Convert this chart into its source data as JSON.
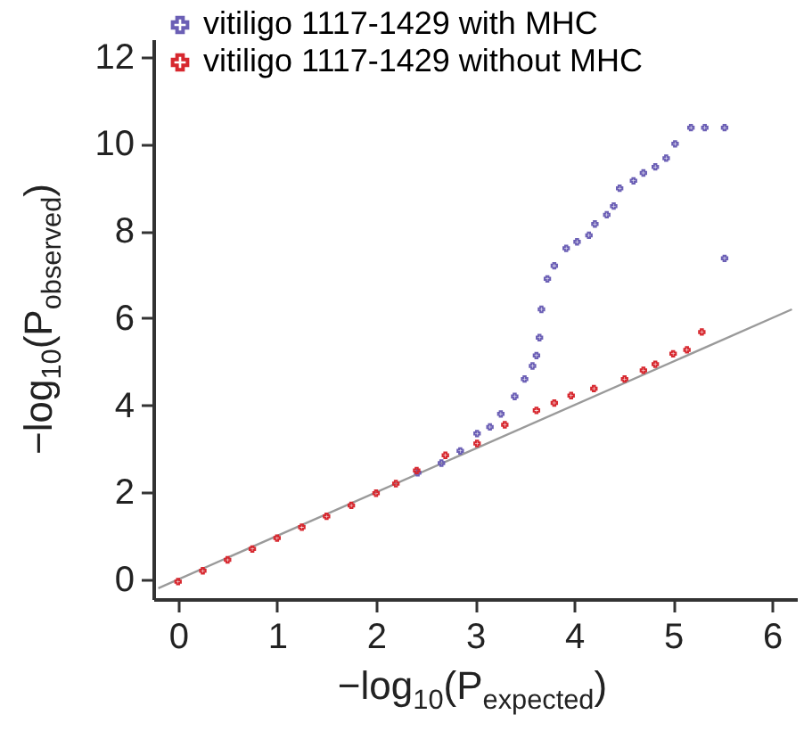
{
  "chart_data": {
    "type": "scatter",
    "xlabel": "−log$_{10}$(P$_{expected}$)",
    "ylabel": "−log$_{10}$(P$_{observed}$)",
    "xlim": [
      -0.25,
      6.25
    ],
    "ylim": [
      -0.45,
      12.4
    ],
    "xticks": [
      0,
      1,
      2,
      3,
      4,
      5,
      6
    ],
    "yticks": [
      0,
      2,
      4,
      6,
      8,
      10,
      12
    ],
    "grid": false,
    "legend": "top left",
    "marker": "cross",
    "series": [
      {
        "name": "vitiligo 1117-1429 with MHC",
        "color": "#6b5fb5",
        "x": [
          2.42,
          2.66,
          2.85,
          3.02,
          3.15,
          3.26,
          3.4,
          3.5,
          3.58,
          3.62,
          3.65,
          3.67,
          3.73,
          3.8,
          3.92,
          4.03,
          4.15,
          4.21,
          4.33,
          4.4,
          4.46,
          4.6,
          4.7,
          4.82,
          4.93,
          5.02,
          5.18,
          5.32,
          5.52,
          5.52
        ],
        "values": [
          2.45,
          2.67,
          2.95,
          3.35,
          3.5,
          3.8,
          4.2,
          4.6,
          4.9,
          5.14,
          5.55,
          6.2,
          6.9,
          7.2,
          7.6,
          7.75,
          7.9,
          8.16,
          8.37,
          8.57,
          8.98,
          9.15,
          9.33,
          9.47,
          9.67,
          10.0,
          10.37,
          10.37,
          10.37,
          7.37
        ]
      },
      {
        "name": "vitiligo 1117-1429 without MHC",
        "color": "#d7282f",
        "x": [
          0,
          0.25,
          0.5,
          0.75,
          1,
          1.25,
          1.5,
          1.75,
          2,
          2.2,
          2.41,
          2.7,
          3.02,
          3.3,
          3.62,
          3.8,
          3.97,
          4.2,
          4.51,
          4.7,
          4.82,
          5.0,
          5.14,
          5.29
        ],
        "values": [
          -0.05,
          0.2,
          0.45,
          0.7,
          0.95,
          1.2,
          1.45,
          1.7,
          1.98,
          2.2,
          2.5,
          2.85,
          3.12,
          3.55,
          3.88,
          4.05,
          4.22,
          4.38,
          4.6,
          4.8,
          4.94,
          5.18,
          5.27,
          5.68
        ]
      },
      {
        "type": "line",
        "marker": "none",
        "color": "#9a9a9a",
        "x": [
          -0.2,
          6.2
        ],
        "values": [
          -0.2,
          6.2
        ]
      }
    ]
  }
}
